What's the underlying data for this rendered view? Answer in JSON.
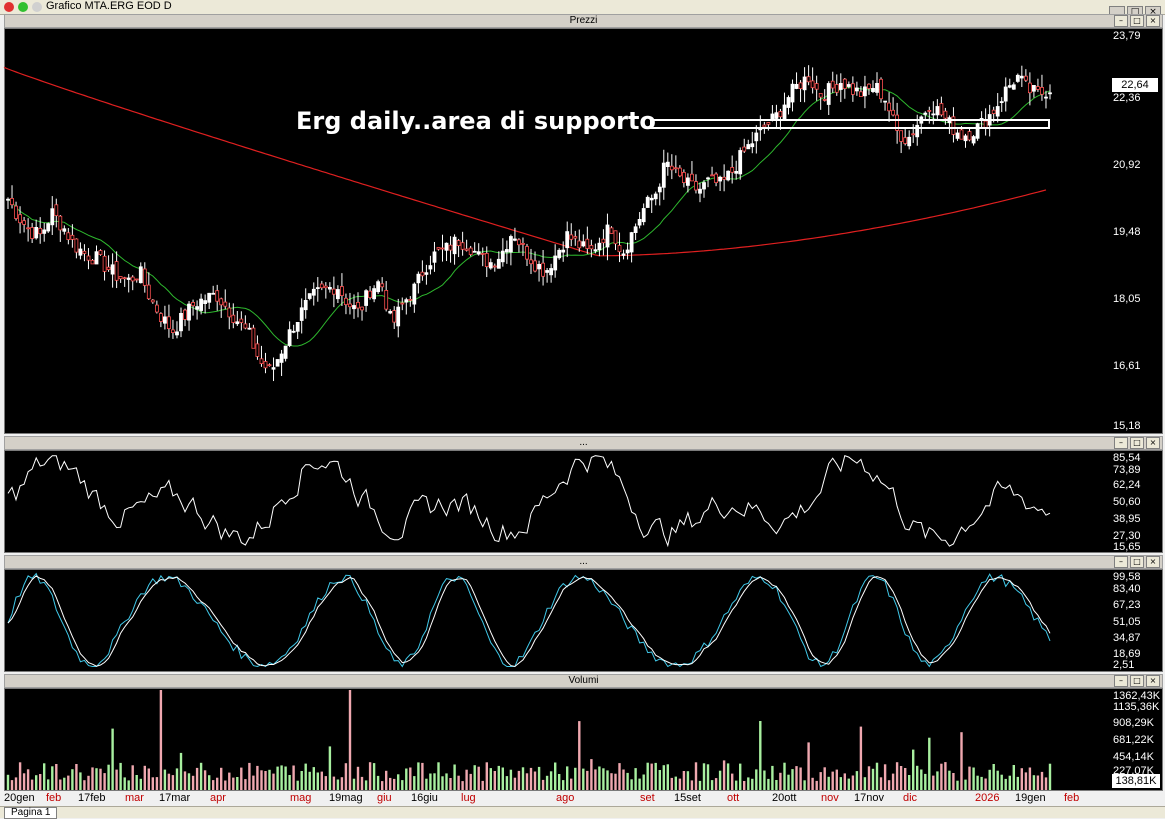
{
  "window": {
    "title": "Grafico MTA.ERG EOD D",
    "buttons": [
      "_",
      "□",
      "×"
    ]
  },
  "panels": {
    "price": {
      "header": "Prezzi",
      "current_label": "22,64",
      "annotation": "Erg daily..area di supporto"
    },
    "osc1": {
      "header": "..."
    },
    "osc2": {
      "header": "..."
    },
    "volume": {
      "header": "Volumi",
      "current_label": "138,81K"
    }
  },
  "panel_buttons": [
    "–",
    "□",
    "×"
  ],
  "tab": {
    "label": "Pagina 1"
  },
  "colors": {
    "sma_long": "#e02020",
    "sma_short": "#2eb82e",
    "stoch_fast": "#40c8e8",
    "stoch_slow": "#ffffff",
    "annotation": "#ffffff"
  },
  "chart_data": [
    {
      "type": "candlestick",
      "ylim": [
        15.18,
        23.79
      ],
      "y_ticks": [
        "23,79",
        "22,36",
        "20,92",
        "19,48",
        "18,05",
        "16,61",
        "15,18"
      ],
      "x_tick_labels": [
        "20gen",
        "feb",
        "17feb",
        "mar",
        "17mar",
        "apr",
        "mag",
        "19mag",
        "giu",
        "16giu",
        "lug",
        "ago",
        "set",
        "15set",
        "ott",
        "20ott",
        "nov",
        "17nov",
        "dic",
        "2026",
        "19gen",
        "feb"
      ],
      "series_close": [
        20.2,
        19.8,
        19.5,
        19.4,
        19.9,
        19.6,
        19.2,
        19.0,
        18.9,
        18.7,
        18.5,
        18.4,
        18.6,
        18.0,
        17.6,
        17.3,
        17.6,
        17.9,
        18.0,
        18.1,
        17.8,
        17.5,
        17.2,
        16.6,
        16.4,
        16.9,
        17.4,
        17.8,
        18.1,
        18.2,
        18.3,
        17.9,
        17.7,
        18.2,
        18.4,
        17.4,
        17.9,
        18.2,
        18.7,
        19.0,
        19.1,
        19.3,
        19.2,
        18.9,
        18.8,
        19.0,
        19.5,
        19.1,
        18.8,
        18.6,
        19.0,
        19.4,
        19.2,
        19.0,
        19.3,
        19.6,
        19.0,
        19.5,
        20.0,
        20.3,
        21.0,
        20.7,
        20.5,
        20.4,
        20.6,
        20.5,
        20.8,
        21.2,
        21.5,
        21.8,
        22.0,
        22.4,
        22.7,
        22.9,
        22.5,
        22.6,
        22.8,
        22.6,
        22.5,
        22.7,
        22.4,
        21.7,
        21.5,
        21.9,
        22.3,
        22.1,
        21.8,
        21.6,
        21.7,
        21.9,
        22.2,
        22.6,
        22.9,
        22.6,
        22.5,
        22.64
      ]
    },
    {
      "type": "line",
      "ylim": [
        15.65,
        85.54
      ],
      "y_ticks": [
        "85,54",
        "73,89",
        "62,24",
        "50,60",
        "38,95",
        "27,30",
        "15,65"
      ]
    },
    {
      "type": "line",
      "ylim": [
        2.51,
        99.58
      ],
      "y_ticks": [
        "99,58",
        "83,40",
        "67,23",
        "51,05",
        "34,87",
        "18,69",
        "2,51"
      ]
    },
    {
      "type": "bar",
      "ylim": [
        0,
        1362.43
      ],
      "y_ticks": [
        "1362,43K",
        "1135,36K",
        "908,29K",
        "681,22K",
        "454,14K",
        "227,07K"
      ]
    }
  ]
}
